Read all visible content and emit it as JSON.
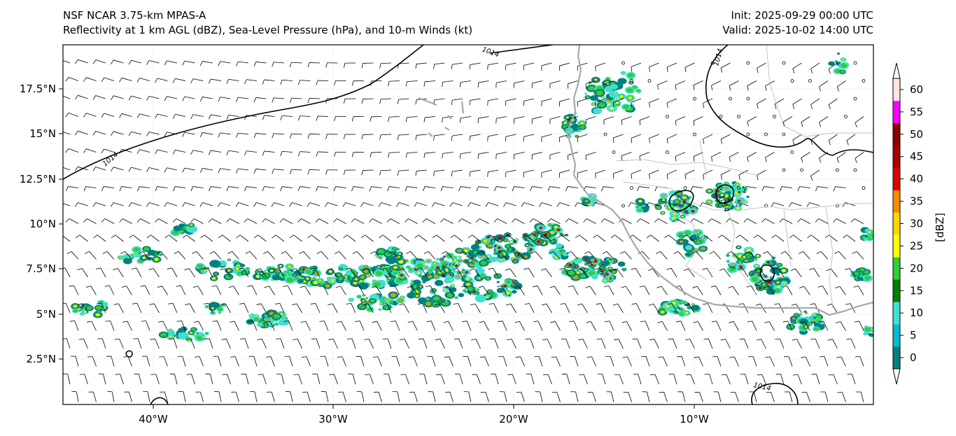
{
  "header": {
    "model": "NSF NCAR 3.75-km MPAS-A",
    "fields": "Reflectivity at 1 km AGL (dBZ), Sea-Level Pressure (hPa), and 10-m Winds (kt)",
    "init": "Init: 2025-09-29 00:00 UTC",
    "valid": "Valid: 2025-10-02 14:00 UTC"
  },
  "axes": {
    "lat_labels": [
      "17.5°N",
      "15°N",
      "12.5°N",
      "10°N",
      "7.5°N",
      "5°N",
      "2.5°N"
    ],
    "lon_labels": [
      "40°W",
      "30°W",
      "20°W",
      "10°W"
    ]
  },
  "contour_labels": [
    "1014",
    "1014",
    "1014",
    "1014",
    "1014"
  ],
  "colorbar": {
    "unit": "[dBZ]",
    "ticks": [
      "0",
      "5",
      "10",
      "15",
      "20",
      "25",
      "30",
      "35",
      "40",
      "45",
      "50",
      "55",
      "60"
    ],
    "colors": [
      "#008080",
      "#00bcd4",
      "#40e0d0",
      "#008000",
      "#32cd32",
      "#ffff00",
      "#ffd700",
      "#ff8c00",
      "#dd0000",
      "#aa0000",
      "#8b0000",
      "#ff00ff",
      "#ffe4e1"
    ]
  },
  "colors": {
    "coastline": "#a9a9a9",
    "borders": "#b0b0b0",
    "isobar": "#000000"
  }
}
